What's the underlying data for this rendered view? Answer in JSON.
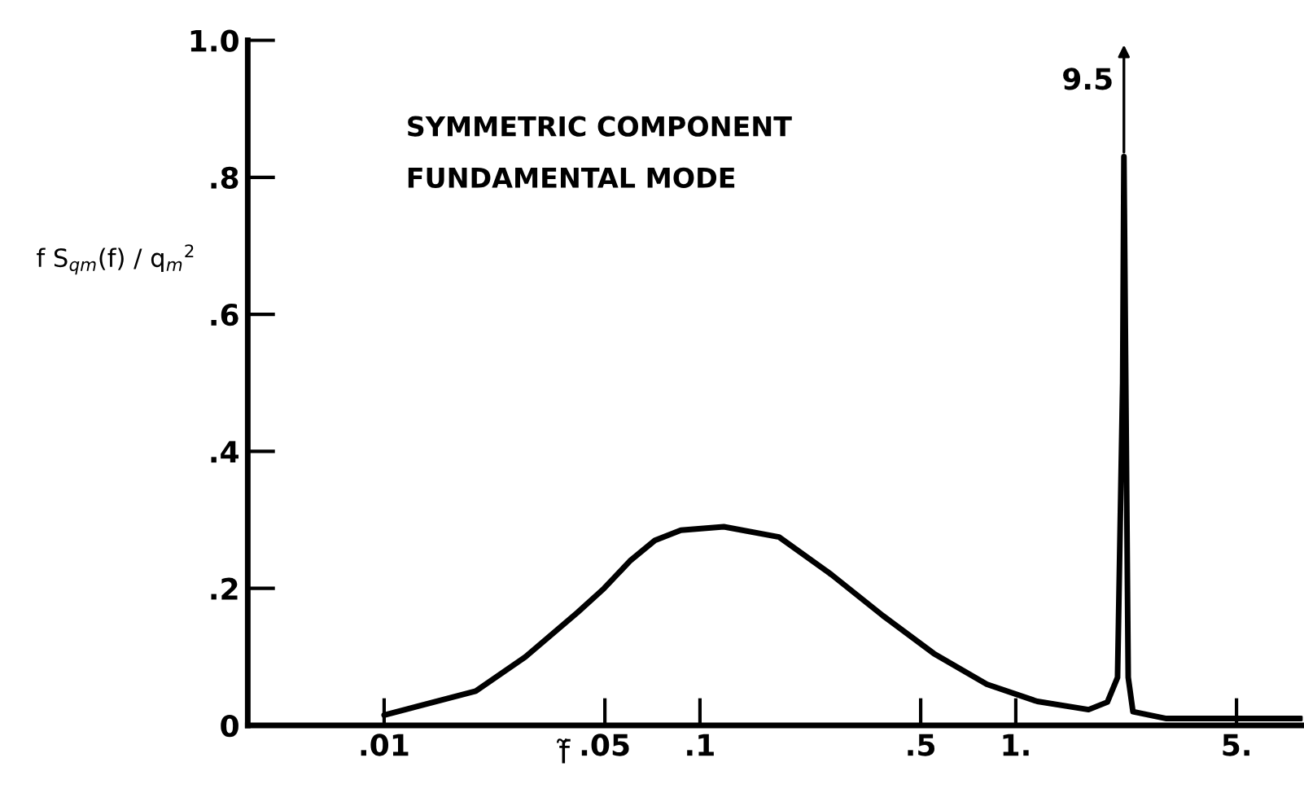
{
  "chart_data": {
    "type": "line",
    "xlabel": "f̃",
    "ylabel": "f S$_{qm}$(f) / q$_{m}$$^{2}$",
    "x": [
      0.01,
      0.0195,
      0.028,
      0.041,
      0.0497,
      0.06,
      0.072,
      0.087,
      0.119,
      0.178,
      0.261,
      0.38,
      0.55,
      0.81,
      1.17,
      1.7,
      1.95,
      2.1,
      2.18,
      2.2,
      2.27,
      2.35,
      3.0,
      8.0
    ],
    "series": [
      {
        "color": "#000000",
        "values": [
          0.015,
          0.05,
          0.1,
          0.165,
          0.2,
          0.24,
          0.27,
          0.285,
          0.29,
          0.275,
          0.22,
          0.16,
          0.105,
          0.06,
          0.035,
          0.023,
          0.034,
          0.07,
          0.5,
          0.83,
          0.07,
          0.02,
          0.01,
          0.01
        ]
      }
    ],
    "log": "x",
    "xlim": [
      0.0037,
      8.1
    ],
    "ylim": [
      0,
      1.0
    ],
    "xticks": [
      {
        "value": 0.01,
        "label": ".01"
      },
      {
        "value": 0.05,
        "label": ".05"
      },
      {
        "value": 0.1,
        "label": ".1"
      },
      {
        "value": 0.5,
        "label": ".5"
      },
      {
        "value": 1,
        "label": "1."
      },
      {
        "value": 5,
        "label": "5."
      }
    ],
    "yticks": [
      0,
      {
        "value": 0.2,
        "label": ".2"
      },
      {
        "value": 0.4,
        "label": ".4"
      },
      {
        "value": 0.6,
        "label": ".6"
      },
      {
        "value": 0.8,
        "label": ".8"
      },
      {
        "value": 1.0,
        "label": "1.0"
      }
    ],
    "grid": false,
    "legend": false,
    "marker": "none",
    "line_style": "solid",
    "annotations": [
      "SYMMETRIC COMPONENT",
      "FUNDAMENTAL MODE",
      "9.5"
    ]
  }
}
